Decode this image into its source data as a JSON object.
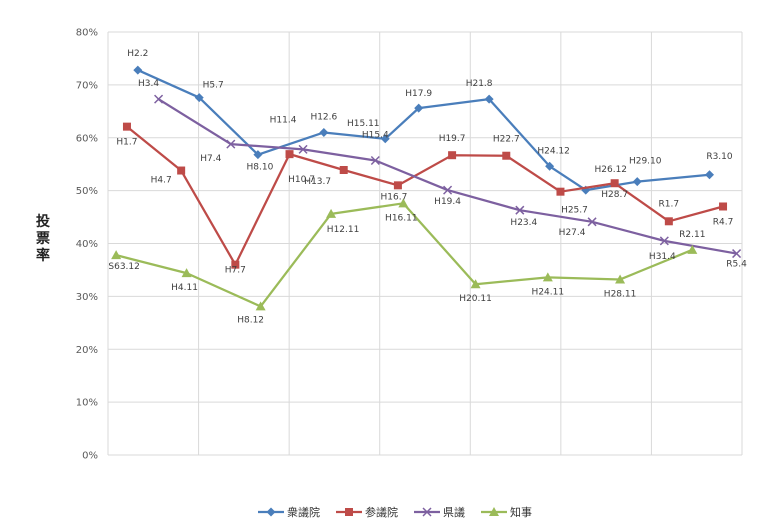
{
  "chart_data": {
    "type": "line",
    "ylabel": "投票率",
    "ylim": [
      0,
      80
    ],
    "yticks": [
      "0%",
      "10%",
      "20%",
      "30%",
      "40%",
      "50%",
      "60%",
      "70%",
      "80%"
    ],
    "grid": true,
    "legend_position": "bottom",
    "series": [
      {
        "name": "衆議院",
        "color": "#4a7ebb",
        "marker": "diamond",
        "points": [
          {
            "label": "H2.2",
            "x": 1990.15,
            "y": 72.8
          },
          {
            "label": "H5.7",
            "x": 1993.55,
            "y": 67.6
          },
          {
            "label": "H8.10",
            "x": 1996.8,
            "y": 56.8
          },
          {
            "label": "H12.6",
            "x": 2000.45,
            "y": 61.0
          },
          {
            "label": "H15.11",
            "x": 2003.85,
            "y": 59.8
          },
          {
            "label": "H17.9",
            "x": 2005.7,
            "y": 65.6
          },
          {
            "label": "H21.8",
            "x": 2009.6,
            "y": 67.3
          },
          {
            "label": "H24.12",
            "x": 2012.95,
            "y": 54.6
          },
          {
            "label": "H26.12",
            "x": 2014.95,
            "y": 50.1
          },
          {
            "label": "H29.10",
            "x": 2017.8,
            "y": 51.7
          },
          {
            "label": "R3.10",
            "x": 2021.8,
            "y": 53.0
          }
        ]
      },
      {
        "name": "参議院",
        "color": "#be4b48",
        "marker": "square",
        "points": [
          {
            "label": "H1.7",
            "x": 1989.55,
            "y": 62.1
          },
          {
            "label": "H4.7",
            "x": 1992.55,
            "y": 53.8
          },
          {
            "label": "H7.7",
            "x": 1995.55,
            "y": 36.0
          },
          {
            "label": "H10.7",
            "x": 1998.55,
            "y": 56.9
          },
          {
            "label": "H13.7",
            "x": 2001.55,
            "y": 53.9
          },
          {
            "label": "H16.7",
            "x": 2004.55,
            "y": 51.0
          },
          {
            "label": "H19.7",
            "x": 2007.55,
            "y": 56.7
          },
          {
            "label": "H22.7",
            "x": 2010.55,
            "y": 56.6
          },
          {
            "label": "H25.7",
            "x": 2013.55,
            "y": 49.8
          },
          {
            "label": "H28.7",
            "x": 2016.55,
            "y": 51.4
          },
          {
            "label": "R1.7",
            "x": 2019.55,
            "y": 44.2
          },
          {
            "label": "R4.7",
            "x": 2022.55,
            "y": 47.0
          }
        ]
      },
      {
        "name": "県議",
        "color": "#7d60a0",
        "marker": "x",
        "points": [
          {
            "label": "H3.4",
            "x": 1991.3,
            "y": 67.3
          },
          {
            "label": "H7.4",
            "x": 1995.3,
            "y": 58.8
          },
          {
            "label": "H11.4",
            "x": 1999.3,
            "y": 57.8
          },
          {
            "label": "H15.4",
            "x": 2003.3,
            "y": 55.7
          },
          {
            "label": "H19.4",
            "x": 2007.3,
            "y": 50.1
          },
          {
            "label": "H23.4",
            "x": 2011.3,
            "y": 46.3
          },
          {
            "label": "H27.4",
            "x": 2015.3,
            "y": 44.1
          },
          {
            "label": "H31.4",
            "x": 2019.3,
            "y": 40.5
          },
          {
            "label": "R5.4",
            "x": 2023.3,
            "y": 38.1
          }
        ]
      },
      {
        "name": "知事",
        "color": "#9bbb59",
        "marker": "triangle",
        "points": [
          {
            "label": "S63.12",
            "x": 1988.95,
            "y": 37.8
          },
          {
            "label": "H4.11",
            "x": 1992.85,
            "y": 34.4
          },
          {
            "label": "H8.12",
            "x": 1996.95,
            "y": 28.1
          },
          {
            "label": "H12.11",
            "x": 2000.85,
            "y": 45.6
          },
          {
            "label": "H16.11",
            "x": 2004.85,
            "y": 47.6
          },
          {
            "label": "H20.11",
            "x": 2008.85,
            "y": 32.3
          },
          {
            "label": "H24.11",
            "x": 2012.85,
            "y": 33.6
          },
          {
            "label": "H28.11",
            "x": 2016.85,
            "y": 33.2
          },
          {
            "label": "R2.11",
            "x": 2020.85,
            "y": 38.8
          }
        ]
      }
    ]
  }
}
